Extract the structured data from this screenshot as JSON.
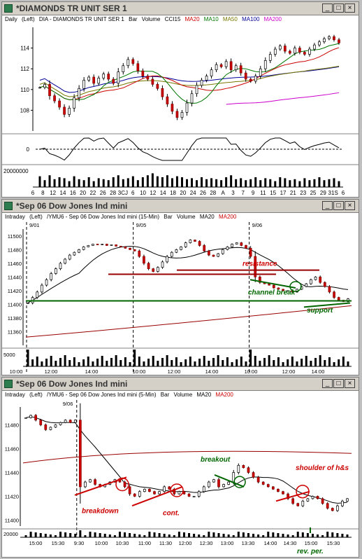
{
  "windows": [
    {
      "title": "*DIAMONDS TR UNIT SER 1",
      "info": [
        {
          "text": "Daily",
          "color": "#000000"
        },
        {
          "text": "(Left)",
          "color": "#000000"
        },
        {
          "text": "DIA - DIAMONDS TR UNIT SER 1",
          "color": "#000000"
        },
        {
          "text": "Bar",
          "color": "#000000"
        },
        {
          "text": "Volume",
          "color": "#000000"
        },
        {
          "text": "CCI15",
          "color": "#000000"
        },
        {
          "text": "MA20",
          "color": "#cc0000"
        },
        {
          "text": "MA10",
          "color": "#007700"
        },
        {
          "text": "MA50",
          "color": "#777700"
        },
        {
          "text": "MA100",
          "color": "#000099"
        },
        {
          "text": "MA200",
          "color": "#cc00cc"
        }
      ]
    },
    {
      "title": "*Sep 06 Dow Jones Ind mini",
      "info": [
        {
          "text": "Intraday",
          "color": "#000000"
        },
        {
          "text": "(Left)",
          "color": "#000000"
        },
        {
          "text": "/YMU6 - Sep 06 Dow Jones Ind mini (15-Min)",
          "color": "#000000"
        },
        {
          "text": "Bar",
          "color": "#000000"
        },
        {
          "text": "Volume",
          "color": "#000000"
        },
        {
          "text": "MA20",
          "color": "#000000"
        },
        {
          "text": "MA200",
          "color": "#cc0000"
        }
      ]
    },
    {
      "title": "*Sep 06 Dow Jones Ind mini",
      "info": [
        {
          "text": "Intraday",
          "color": "#000000"
        },
        {
          "text": "(Left)",
          "color": "#000000"
        },
        {
          "text": "/YMU6 - Sep 06 Dow Jones Ind mini (5-Min)",
          "color": "#000000"
        },
        {
          "text": "Bar",
          "color": "#000000"
        },
        {
          "text": "Volume",
          "color": "#000000"
        },
        {
          "text": "MA20",
          "color": "#000000"
        },
        {
          "text": "MA200",
          "color": "#cc0000"
        }
      ]
    }
  ],
  "window_buttons": {
    "minimize": "_",
    "maximize": "□",
    "close": "×"
  },
  "chart_data": [
    {
      "type": "line",
      "title": "DIA - DIAMONDS TR UNIT SER 1",
      "ylim": [
        106,
        116
      ],
      "y_ticks": [
        "114",
        "112",
        "110",
        "108"
      ],
      "x_ticks": [
        "6",
        "8",
        "12",
        "14",
        "16",
        "20",
        "22",
        "26",
        "28",
        "3CJ",
        "6",
        "10",
        "12",
        "14",
        "18",
        "20",
        "24",
        "26",
        "28",
        "A",
        "3",
        "7",
        "9",
        "11",
        "15",
        "17",
        "21",
        "23",
        "25",
        "29",
        "31S",
        "6"
      ],
      "price": [
        110.2,
        110.5,
        109.4,
        108.9,
        108.3,
        107.6,
        108.2,
        109.2,
        110.1,
        110.9,
        111.2,
        110.6,
        111.1,
        111.5,
        111.0,
        110.6,
        111.7,
        112.3,
        112.9,
        112.5,
        111.8,
        111.3,
        111.0,
        110.5,
        110.1,
        109.3,
        108.6,
        107.9,
        107.3,
        107.8,
        108.7,
        109.6,
        110.4,
        110.9,
        111.3,
        111.9,
        112.4,
        112.2,
        112.7,
        111.9,
        112.3,
        111.6,
        111.0,
        110.8,
        111.3,
        112.0,
        112.8,
        113.4,
        113.9,
        114.2,
        113.7,
        113.5,
        114.0,
        113.6,
        113.4,
        113.9,
        114.3,
        114.6,
        114.9,
        115.1,
        114.8,
        114.5
      ],
      "cci_label": "0",
      "volume_label": "20000000",
      "volume": [
        0.55,
        0.35,
        0.6,
        0.4,
        0.5,
        0.45,
        0.3,
        0.55,
        0.4,
        0.35,
        0.5,
        0.3,
        0.45,
        0.4,
        0.35,
        0.5,
        0.6,
        0.4,
        0.45,
        0.55,
        0.35,
        0.5,
        0.6,
        0.7,
        0.55,
        0.5,
        0.6,
        0.45,
        0.55,
        0.5,
        0.4,
        0.45,
        0.35,
        0.5,
        0.4,
        0.45,
        0.4,
        0.35,
        0.5,
        0.6,
        0.4,
        0.45,
        0.35,
        0.4,
        0.5,
        0.35,
        0.45,
        0.4,
        0.3,
        0.5,
        0.45,
        0.35,
        0.4,
        0.3,
        0.45,
        0.35,
        0.4,
        0.5,
        0.35,
        0.4,
        0.45,
        0.3
      ]
    },
    {
      "type": "line",
      "title": "/YMU6 - Sep 06 Dow Jones Ind mini (15-Min)",
      "ylim": [
        11340,
        11510
      ],
      "y_ticks": [
        "11500",
        "11480",
        "11460",
        "11440",
        "11420",
        "11400",
        "11380",
        "11360"
      ],
      "x_ticks": [
        "10:00",
        "12:00",
        "14:00",
        "10:00",
        "12:00",
        "14:00",
        "10:00",
        "12:00",
        "14:00"
      ],
      "date_labels": [
        "9/01",
        "9/05",
        "9/06"
      ],
      "price": [
        11402,
        11410,
        11418,
        11428,
        11436,
        11445,
        11452,
        11460,
        11466,
        11472,
        11476,
        11480,
        11484,
        11486,
        11488,
        11487,
        11488,
        11486,
        11487,
        11485,
        11484,
        11482,
        11480,
        11478,
        11470,
        11460,
        11452,
        11448,
        11454,
        11462,
        11470,
        11476,
        11480,
        11484,
        11490,
        11494,
        11492,
        11486,
        11478,
        11472,
        11470,
        11474,
        11480,
        11484,
        11488,
        11490,
        11486,
        11482,
        11470,
        11440,
        11432,
        11430,
        11428,
        11424,
        11422,
        11420,
        11420,
        11418,
        11422,
        11426,
        11430,
        11436,
        11440,
        11432,
        11426,
        11418,
        11410,
        11406,
        11404,
        11408
      ],
      "annotations": [
        "resistance",
        "channel break",
        "support"
      ],
      "volume_label": "5000"
    },
    {
      "type": "line",
      "title": "/YMU6 - Sep 06 Dow Jones Ind mini (5-Min)",
      "ylim": [
        11395,
        11495
      ],
      "y_ticks": [
        "11480",
        "11460",
        "11440",
        "11420",
        "11400"
      ],
      "x_ticks": [
        "15:00",
        "15:30",
        "9:30",
        "10:00",
        "10:30",
        "11:00",
        "11:30",
        "12:00",
        "12:30",
        "13:00",
        "13:30",
        "14:00",
        "14:30",
        "15:00",
        "15:30"
      ],
      "date_labels": [
        "9/06"
      ],
      "price": [
        11486,
        11488,
        11484,
        11480,
        11476,
        11478,
        11480,
        11482,
        11484,
        11482,
        11484,
        11428,
        11432,
        11434,
        11430,
        11428,
        11430,
        11432,
        11434,
        11432,
        11428,
        11422,
        11420,
        11424,
        11426,
        11424,
        11422,
        11424,
        11428,
        11426,
        11422,
        11424,
        11422,
        11420,
        11420,
        11424,
        11428,
        11432,
        11434,
        11428,
        11430,
        11432,
        11440,
        11446,
        11444,
        11440,
        11436,
        11432,
        11430,
        11428,
        11426,
        11424,
        11422,
        11418,
        11414,
        11412,
        11416,
        11418,
        11420,
        11418,
        11414,
        11410,
        11408,
        11412,
        11416,
        11418
      ],
      "annotations": [
        "breakdown",
        "cont.",
        "breakout",
        "shoulder of h&s",
        "rev. per."
      ],
      "volume_label": "20000"
    }
  ]
}
